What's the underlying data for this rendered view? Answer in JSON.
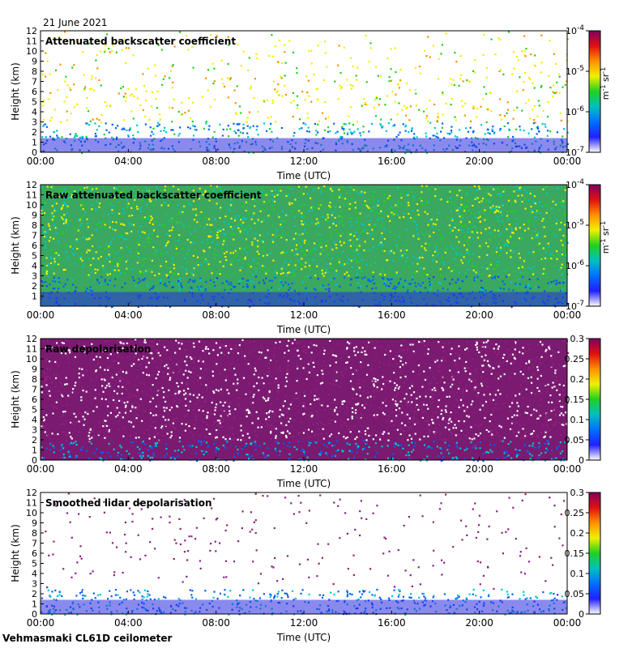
{
  "figure": {
    "date": "21 June 2021",
    "instrument": "Vehmasmaki CL61D ceilometer"
  },
  "chart_data": [
    {
      "type": "heatmap",
      "title": "Attenuated backscatter coefficient",
      "xlabel": "Time (UTC)",
      "ylabel": "Height (km)",
      "x_ticks": [
        "00:00",
        "04:00",
        "08:00",
        "12:00",
        "16:00",
        "20:00",
        "00:00"
      ],
      "y_ticks": [
        "0",
        "1",
        "2",
        "3",
        "4",
        "5",
        "6",
        "7",
        "8",
        "9",
        "10",
        "11",
        "12"
      ],
      "ylim": [
        0,
        12
      ],
      "colorbar": {
        "scale": "log",
        "ticks": [
          {
            "base": "10",
            "exp": "-4"
          },
          {
            "base": "10",
            "exp": "-5"
          },
          {
            "base": "10",
            "exp": "-6"
          },
          {
            "base": "10",
            "exp": "-7"
          }
        ],
        "unit": {
          "m": "m",
          "m_exp": "-1",
          "sr": "sr",
          "sr_exp": "-1"
        }
      },
      "variant": "backscatter"
    },
    {
      "type": "heatmap",
      "title": "Raw attenuated backscatter coefficient",
      "xlabel": "Time (UTC)",
      "ylabel": "Height (km)",
      "x_ticks": [
        "00:00",
        "04:00",
        "08:00",
        "12:00",
        "16:00",
        "20:00",
        "00:00"
      ],
      "y_ticks": [
        "1",
        "2",
        "3",
        "4",
        "5",
        "6",
        "7",
        "8",
        "9",
        "10",
        "11",
        "12"
      ],
      "ylim": [
        0,
        12
      ],
      "colorbar": {
        "scale": "log",
        "ticks": [
          {
            "base": "10",
            "exp": "-4"
          },
          {
            "base": "10",
            "exp": "-5"
          },
          {
            "base": "10",
            "exp": "-6"
          },
          {
            "base": "10",
            "exp": "-7"
          }
        ],
        "unit": {
          "m": "m",
          "m_exp": "-1",
          "sr": "sr",
          "sr_exp": "-1"
        }
      },
      "variant": "raw"
    },
    {
      "type": "heatmap",
      "title": "Raw depolarisation",
      "xlabel": "Time (UTC)",
      "ylabel": "Height (km)",
      "x_ticks": [
        "00:00",
        "04:00",
        "08:00",
        "12:00",
        "16:00",
        "20:00",
        "00:00"
      ],
      "y_ticks": [
        "0",
        "1",
        "2",
        "3",
        "4",
        "5",
        "6",
        "7",
        "8",
        "9",
        "10",
        "11",
        "12"
      ],
      "ylim": [
        0,
        12
      ],
      "colorbar": {
        "scale": "linear",
        "ticks": [
          "0.3",
          "0.25",
          "0.2",
          "0.15",
          "0.1",
          "0.05",
          "0"
        ]
      },
      "variant": "rawdepol"
    },
    {
      "type": "heatmap",
      "title": "Smoothed lidar depolarisation",
      "xlabel": "Time (UTC)",
      "ylabel": "Height (km)",
      "x_ticks": [
        "00:00",
        "04:00",
        "08:00",
        "12:00",
        "16:00",
        "20:00",
        "00:00"
      ],
      "y_ticks": [
        "0",
        "1",
        "2",
        "3",
        "4",
        "5",
        "6",
        "7",
        "8",
        "9",
        "10",
        "11",
        "12"
      ],
      "ylim": [
        0,
        12
      ],
      "colorbar": {
        "scale": "linear",
        "ticks": [
          "0.3",
          "0.25",
          "0.2",
          "0.15",
          "0.1",
          "0.05",
          "0"
        ]
      },
      "variant": "smoothdepol"
    }
  ]
}
